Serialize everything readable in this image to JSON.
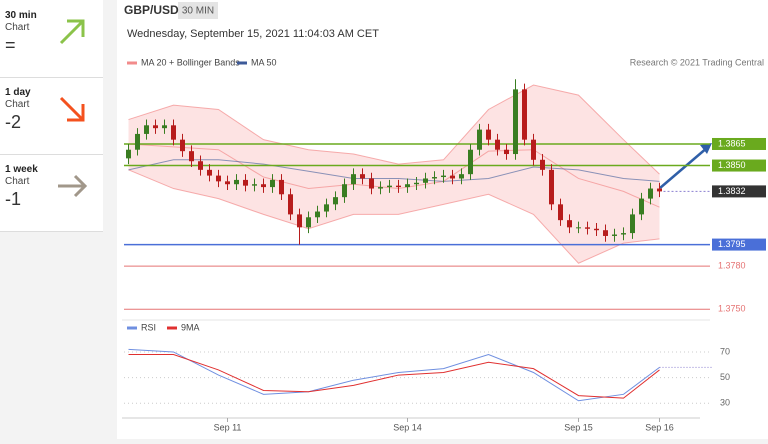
{
  "sidebar": {
    "items": [
      {
        "period": "30 min",
        "label": "Chart",
        "value": "="
      },
      {
        "period": "1 day",
        "label": "Chart",
        "value": "-2"
      },
      {
        "period": "1 week",
        "label": "Chart",
        "value": "-1"
      }
    ]
  },
  "chart_data": {
    "type": "candlestick",
    "title": "GBP/USD",
    "timeframe": "30 MIN",
    "subtitle": "Wednesday, September 15, 2021 11:04:03 AM CET",
    "credit": "Research © 2021 Trading Central",
    "up_color": "#3a7d22",
    "down_color": "#b71c1c",
    "categories": [
      null,
      null,
      null,
      null,
      null,
      null,
      null,
      null,
      null,
      null,
      null,
      "Sep 11",
      null,
      null,
      null,
      null,
      null,
      null,
      null,
      null,
      null,
      null,
      null,
      null,
      null,
      null,
      null,
      null,
      null,
      null,
      null,
      "Sep 14",
      null,
      null,
      null,
      null,
      null,
      null,
      null,
      null,
      null,
      null,
      null,
      null,
      null,
      null,
      null,
      null,
      null,
      null,
      "Sep 15",
      null,
      null,
      null,
      null,
      null,
      null,
      null,
      null,
      "Sep 16"
    ],
    "open": [
      1.3855,
      1.3861,
      1.3872,
      1.3878,
      1.3876,
      1.3878,
      1.3868,
      1.386,
      1.3853,
      1.3847,
      1.3843,
      1.3839,
      1.3837,
      1.384,
      1.3836,
      1.3837,
      1.3835,
      1.384,
      1.383,
      1.3816,
      1.3807,
      1.3814,
      1.3818,
      1.3823,
      1.3828,
      1.3837,
      1.3844,
      1.3841,
      1.3834,
      1.3835,
      1.3836,
      1.3835,
      1.3837,
      1.3838,
      1.3841,
      1.3842,
      1.3843,
      1.3841,
      1.3844,
      1.3861,
      1.3875,
      1.3868,
      1.3861,
      1.3858,
      1.3903,
      1.3868,
      1.3854,
      1.3847,
      1.3823,
      1.3812,
      1.3807,
      1.3807,
      1.3806,
      1.3805,
      1.3801,
      1.3802,
      1.3803,
      1.3816,
      1.3827,
      1.3834
    ],
    "high": [
      1.3865,
      1.3876,
      1.3882,
      1.3882,
      1.3882,
      1.3882,
      1.3872,
      1.3864,
      1.3857,
      1.3851,
      1.3847,
      1.3843,
      1.3844,
      1.3844,
      1.3841,
      1.3841,
      1.3844,
      1.3844,
      1.3834,
      1.382,
      1.3818,
      1.3822,
      1.3827,
      1.3832,
      1.3841,
      1.3848,
      1.3848,
      1.3845,
      1.3839,
      1.384,
      1.384,
      1.3841,
      1.3842,
      1.3845,
      1.3846,
      1.3847,
      1.3847,
      1.3848,
      1.3865,
      1.3879,
      1.3879,
      1.3872,
      1.3865,
      1.391,
      1.3907,
      1.3872,
      1.3858,
      1.3851,
      1.3827,
      1.3816,
      1.3811,
      1.3811,
      1.381,
      1.3809,
      1.3806,
      1.3807,
      1.382,
      1.3831,
      1.3838,
      1.3838
    ],
    "low": [
      1.3851,
      1.3857,
      1.3868,
      1.3872,
      1.3872,
      1.3864,
      1.3856,
      1.3849,
      1.3843,
      1.3839,
      1.3835,
      1.3833,
      1.3833,
      1.3832,
      1.3832,
      1.3831,
      1.3831,
      1.3826,
      1.3812,
      1.3795,
      1.3803,
      1.381,
      1.3814,
      1.3819,
      1.3824,
      1.3833,
      1.3837,
      1.383,
      1.383,
      1.3831,
      1.3831,
      1.3831,
      1.3833,
      1.3834,
      1.3837,
      1.3838,
      1.3837,
      1.3837,
      1.384,
      1.3857,
      1.3864,
      1.3857,
      1.3854,
      1.3854,
      1.3864,
      1.385,
      1.3843,
      1.3819,
      1.3808,
      1.3803,
      1.3803,
      1.3802,
      1.3801,
      1.3797,
      1.3797,
      1.3798,
      1.3799,
      1.3812,
      1.3823,
      1.3828
    ],
    "close": [
      1.3861,
      1.3872,
      1.3878,
      1.3876,
      1.3878,
      1.3868,
      1.386,
      1.3853,
      1.3847,
      1.3843,
      1.3839,
      1.3837,
      1.384,
      1.3836,
      1.3837,
      1.3835,
      1.384,
      1.383,
      1.3816,
      1.3807,
      1.3814,
      1.3818,
      1.3823,
      1.3828,
      1.3837,
      1.3844,
      1.3841,
      1.3834,
      1.3835,
      1.3836,
      1.3835,
      1.3837,
      1.3838,
      1.3841,
      1.3842,
      1.3843,
      1.3841,
      1.3844,
      1.3861,
      1.3875,
      1.3868,
      1.3861,
      1.3858,
      1.3903,
      1.3868,
      1.3854,
      1.3847,
      1.3823,
      1.3812,
      1.3807,
      1.3807,
      1.3806,
      1.3805,
      1.3801,
      1.3802,
      1.3803,
      1.3816,
      1.3827,
      1.3834,
      1.3832
    ],
    "ylim": [
      1.3746,
      1.3913
    ],
    "bands": {
      "name": "MA 20 + Bollinger Bands",
      "color": "#f28b8b",
      "fill": "#fde3e3",
      "x": [
        0,
        5,
        10,
        15,
        20,
        25,
        30,
        35,
        40,
        45,
        50,
        55,
        59
      ],
      "upper": [
        1.3882,
        1.3892,
        1.3889,
        1.3868,
        1.3861,
        1.3858,
        1.3851,
        1.3854,
        1.3889,
        1.3906,
        1.3899,
        1.3868,
        1.3844
      ],
      "middle": [
        1.3865,
        1.3863,
        1.3861,
        1.3842,
        1.3834,
        1.3837,
        1.3834,
        1.3839,
        1.386,
        1.3861,
        1.3841,
        1.3832,
        1.3821
      ],
      "lower": [
        1.3847,
        1.3834,
        1.3827,
        1.3816,
        1.3806,
        1.3816,
        1.3816,
        1.3823,
        1.383,
        1.3816,
        1.3782,
        1.3796,
        1.3799
      ]
    },
    "ma50": {
      "name": "MA 50",
      "color": "#3d5a99",
      "x": [
        0,
        5,
        10,
        15,
        20,
        25,
        30,
        35,
        40,
        45,
        50,
        55,
        59
      ],
      "values": [
        1.3847,
        1.3854,
        1.3854,
        1.3851,
        1.3846,
        1.3841,
        1.3841,
        1.3839,
        1.3841,
        1.3849,
        1.3847,
        1.3841,
        1.3839
      ]
    },
    "levels": [
      {
        "value": 1.3865,
        "label": "1.3865",
        "color": "#6aaa1e",
        "label_box": true
      },
      {
        "value": 1.385,
        "label": "1.3850",
        "color": "#6aaa1e",
        "label_box": true
      },
      {
        "value": 1.3832,
        "label": "1.3832",
        "color": "#333333",
        "label_box": true
      },
      {
        "value": 1.3795,
        "label": "1.3795",
        "color": "#4a6fd8",
        "label_box": true
      },
      {
        "value": 1.378,
        "label": "1.3780",
        "color": "#e57373",
        "label_box": false
      },
      {
        "value": 1.375,
        "label": "1.3750",
        "color": "#e57373",
        "label_box": false
      }
    ],
    "rsi": {
      "ylim": [
        17,
        91
      ],
      "yticks": [
        70,
        50,
        30
      ],
      "x": [
        0,
        5,
        10,
        15,
        20,
        25,
        30,
        35,
        40,
        45,
        50,
        55,
        59
      ],
      "series": [
        {
          "name": "RSI",
          "color": "#6f8fe0",
          "values": [
            72,
            70,
            52,
            37,
            39,
            48,
            54,
            57,
            68,
            54,
            32,
            37,
            58
          ]
        },
        {
          "name": "9MA",
          "color": "#e03030",
          "values": [
            68,
            68,
            56,
            40,
            39,
            44,
            52,
            54,
            62,
            57,
            36,
            34,
            56
          ]
        }
      ]
    }
  }
}
